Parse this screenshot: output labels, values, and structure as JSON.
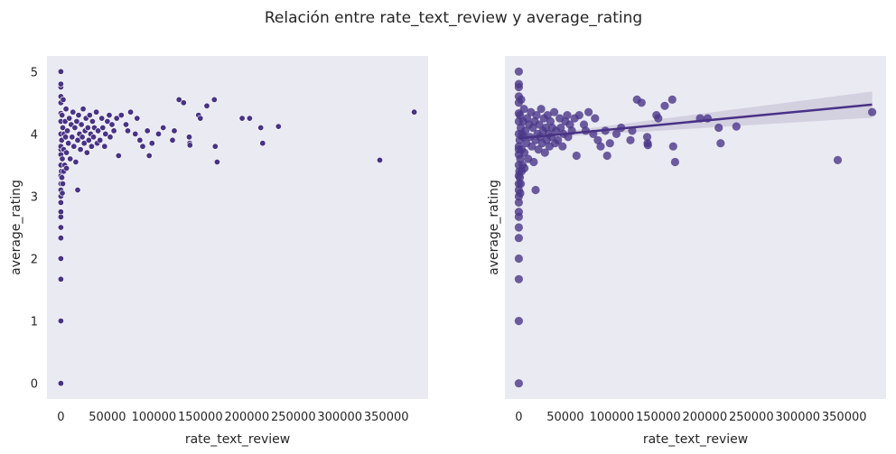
{
  "figure": {
    "title": "Relación entre rate_text_review y average_rating"
  },
  "colors": {
    "panel_bg": "#eaeaf2",
    "point": "#483285",
    "point_alpha": "#4b3788",
    "reg_line": "#483285",
    "ci_band": "#c9c5d9",
    "text": "#262626"
  },
  "chart_data": [
    {
      "type": "scatter",
      "title": "",
      "xlabel": "rate_text_review",
      "ylabel": "average_rating",
      "xlim": [
        -15000,
        395000
      ],
      "ylim": [
        -0.25,
        5.25
      ],
      "xticks": [
        0,
        50000,
        100000,
        150000,
        200000,
        250000,
        300000,
        350000
      ],
      "xtick_labels": [
        "0",
        "50000",
        "100000",
        "150000",
        "200000",
        "250000",
        "300000",
        "350000"
      ],
      "yticks": [
        0,
        1,
        2,
        3,
        4,
        5
      ],
      "ytick_labels": [
        "0",
        "1",
        "2",
        "3",
        "4",
        "5"
      ],
      "grid": false,
      "points": [
        [
          0,
          0.0
        ],
        [
          0,
          1.0
        ],
        [
          0,
          1.67
        ],
        [
          0,
          2.0
        ],
        [
          0,
          2.33
        ],
        [
          0,
          2.5
        ],
        [
          0,
          2.67
        ],
        [
          0,
          2.75
        ],
        [
          0,
          2.9
        ],
        [
          0,
          3.0
        ],
        [
          0,
          3.1
        ],
        [
          0,
          3.2
        ],
        [
          0,
          3.33
        ],
        [
          0,
          3.5
        ],
        [
          0,
          3.67
        ],
        [
          0,
          3.75
        ],
        [
          0,
          3.8
        ],
        [
          0,
          4.0
        ],
        [
          0,
          4.2
        ],
        [
          0,
          4.33
        ],
        [
          0,
          4.5
        ],
        [
          0,
          4.6
        ],
        [
          0,
          4.75
        ],
        [
          0,
          4.8
        ],
        [
          0,
          5.0
        ],
        [
          500,
          3.4
        ],
        [
          800,
          3.9
        ],
        [
          1200,
          4.3
        ],
        [
          1500,
          3.6
        ],
        [
          2000,
          4.1
        ],
        [
          2500,
          4.55
        ],
        [
          3000,
          3.75
        ],
        [
          3500,
          4.0
        ],
        [
          4000,
          3.5
        ],
        [
          4500,
          4.2
        ],
        [
          5000,
          3.95
        ],
        [
          5500,
          4.4
        ],
        [
          6000,
          3.7
        ],
        [
          7000,
          4.05
        ],
        [
          8000,
          3.85
        ],
        [
          9000,
          4.25
        ],
        [
          10000,
          3.6
        ],
        [
          11000,
          4.15
        ],
        [
          12000,
          3.95
        ],
        [
          13000,
          4.35
        ],
        [
          14000,
          3.8
        ],
        [
          15000,
          4.1
        ],
        [
          16000,
          3.55
        ],
        [
          17000,
          4.2
        ],
        [
          18000,
          3.9
        ],
        [
          19000,
          4.3
        ],
        [
          20000,
          4.0
        ],
        [
          21000,
          3.75
        ],
        [
          22000,
          4.15
        ],
        [
          23000,
          3.95
        ],
        [
          24000,
          4.4
        ],
        [
          25000,
          3.85
        ],
        [
          26000,
          4.05
        ],
        [
          27000,
          4.25
        ],
        [
          28000,
          3.7
        ],
        [
          29000,
          4.1
        ],
        [
          30000,
          3.9
        ],
        [
          31000,
          4.3
        ],
        [
          32000,
          4.0
        ],
        [
          33000,
          3.8
        ],
        [
          34000,
          4.2
        ],
        [
          35000,
          3.95
        ],
        [
          36000,
          4.1
        ],
        [
          38000,
          4.35
        ],
        [
          39000,
          3.85
        ],
        [
          40000,
          4.05
        ],
        [
          42000,
          3.9
        ],
        [
          44000,
          4.25
        ],
        [
          45000,
          4.1
        ],
        [
          47000,
          3.8
        ],
        [
          48000,
          4.0
        ],
        [
          50000,
          4.2
        ],
        [
          52000,
          4.3
        ],
        [
          53000,
          3.95
        ],
        [
          55000,
          4.15
        ],
        [
          57000,
          4.05
        ],
        [
          60000,
          4.25
        ],
        [
          62000,
          3.65
        ],
        [
          65000,
          4.3
        ],
        [
          70000,
          4.15
        ],
        [
          72000,
          4.05
        ],
        [
          75000,
          4.35
        ],
        [
          80000,
          4.0
        ],
        [
          82000,
          4.25
        ],
        [
          85000,
          3.9
        ],
        [
          88000,
          3.8
        ],
        [
          93000,
          4.05
        ],
        [
          95000,
          3.65
        ],
        [
          98000,
          3.85
        ],
        [
          105000,
          4.0
        ],
        [
          110000,
          4.1
        ],
        [
          120000,
          3.9
        ],
        [
          122000,
          4.05
        ],
        [
          127000,
          4.55
        ],
        [
          132000,
          4.5
        ],
        [
          138000,
          3.95
        ],
        [
          138500,
          3.85
        ],
        [
          138800,
          3.82
        ],
        [
          148000,
          4.3
        ],
        [
          150000,
          4.25
        ],
        [
          157000,
          4.45
        ],
        [
          165000,
          4.55
        ],
        [
          166000,
          3.8
        ],
        [
          168000,
          3.55
        ],
        [
          195000,
          4.25
        ],
        [
          203000,
          4.25
        ],
        [
          215000,
          4.1
        ],
        [
          217000,
          3.85
        ],
        [
          234000,
          4.12
        ],
        [
          343000,
          3.58
        ],
        [
          380000,
          4.35
        ],
        [
          1000,
          3.3
        ],
        [
          2000,
          3.2
        ],
        [
          18000,
          3.1
        ],
        [
          1500,
          3.05
        ],
        [
          3000,
          3.4
        ],
        [
          6000,
          3.45
        ]
      ],
      "regression": null
    },
    {
      "type": "scatter",
      "title": "",
      "xlabel": "rate_text_review",
      "ylabel": "average_rating",
      "xlim": [
        -15000,
        395000
      ],
      "ylim": [
        -0.25,
        5.25
      ],
      "xticks": [
        0,
        50000,
        100000,
        150000,
        200000,
        250000,
        300000,
        350000
      ],
      "xtick_labels": [
        "0",
        "50000",
        "100000",
        "150000",
        "200000",
        "250000",
        "300000",
        "350000"
      ],
      "yticks": [],
      "ytick_labels": [],
      "grid": false,
      "points": "same_as_left",
      "regression": {
        "x": [
          0,
          380000
        ],
        "y": [
          3.93,
          4.47
        ],
        "ci_upper_end": 4.68,
        "ci_lower_end": 4.26
      }
    }
  ]
}
